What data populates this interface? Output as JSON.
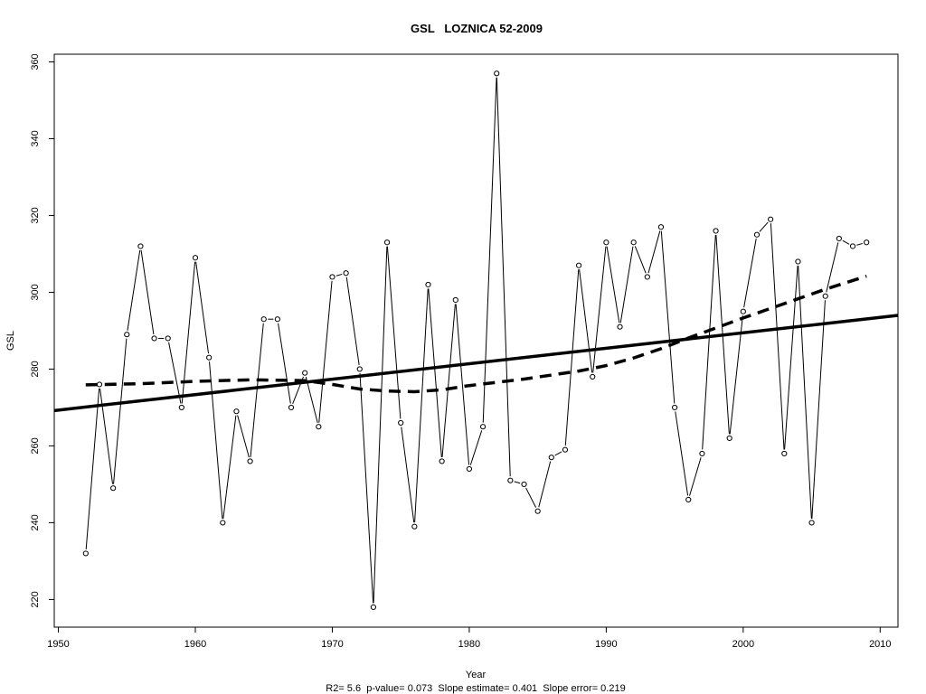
{
  "chart_data": {
    "type": "line",
    "title": "GSL   LOZNICA 52-2009",
    "xlabel": "Year",
    "ylabel": "GSL",
    "subtitle": "R2= 5.6  p-value= 0.073  Slope estimate= 0.401  Slope error= 0.219",
    "xlim": [
      1949.7,
      2011.3
    ],
    "ylim": [
      212.8,
      362.0
    ],
    "x_ticks": [
      1950,
      1960,
      1970,
      1980,
      1990,
      2000,
      2010
    ],
    "y_ticks": [
      220,
      240,
      260,
      280,
      300,
      320,
      340,
      360
    ],
    "grid": false,
    "series": [
      {
        "style": "line-with-points",
        "x": [
          1952,
          1953,
          1954,
          1955,
          1956,
          1957,
          1958,
          1959,
          1960,
          1961,
          1962,
          1963,
          1964,
          1965,
          1966,
          1967,
          1968,
          1969,
          1970,
          1971,
          1972,
          1973,
          1974,
          1975,
          1976,
          1977,
          1978,
          1979,
          1980,
          1981,
          1982,
          1983,
          1984,
          1985,
          1986,
          1987,
          1988,
          1989,
          1990,
          1991,
          1992,
          1993,
          1994,
          1995,
          1996,
          1997,
          1998,
          1999,
          2000,
          2001,
          2002,
          2003,
          2004,
          2005,
          2006,
          2007,
          2008,
          2009
        ],
        "values": [
          232,
          276,
          249,
          289,
          312,
          288,
          288,
          270,
          309,
          283,
          240,
          269,
          256,
          293,
          293,
          270,
          279,
          265,
          304,
          305,
          280,
          218,
          313,
          266,
          239,
          302,
          256,
          298,
          254,
          265,
          357,
          251,
          250,
          243,
          257,
          259,
          307,
          278,
          313,
          291,
          313,
          304,
          317,
          270,
          246,
          258,
          316,
          262,
          295,
          315,
          319,
          258,
          308,
          240,
          299,
          314,
          312,
          313
        ]
      },
      {
        "style": "linear-trend",
        "x": [
          1949.7,
          2011.3
        ],
        "values": [
          269.2,
          294.0
        ]
      },
      {
        "style": "smoothed-dashed",
        "x": [
          1952,
          1956,
          1960,
          1964,
          1968,
          1970,
          1972,
          1974,
          1976,
          1978,
          1980,
          1984,
          1988,
          1990,
          1992,
          1994,
          1996,
          1998,
          2000,
          2002,
          2004,
          2006,
          2009
        ],
        "values": [
          275.9,
          276.2,
          276.8,
          277.2,
          277.0,
          276.0,
          274.8,
          274.3,
          274.1,
          274.6,
          275.7,
          277.4,
          279.5,
          280.9,
          282.9,
          285.3,
          288.1,
          290.7,
          293.3,
          295.8,
          298.3,
          300.8,
          304.2
        ]
      }
    ]
  }
}
